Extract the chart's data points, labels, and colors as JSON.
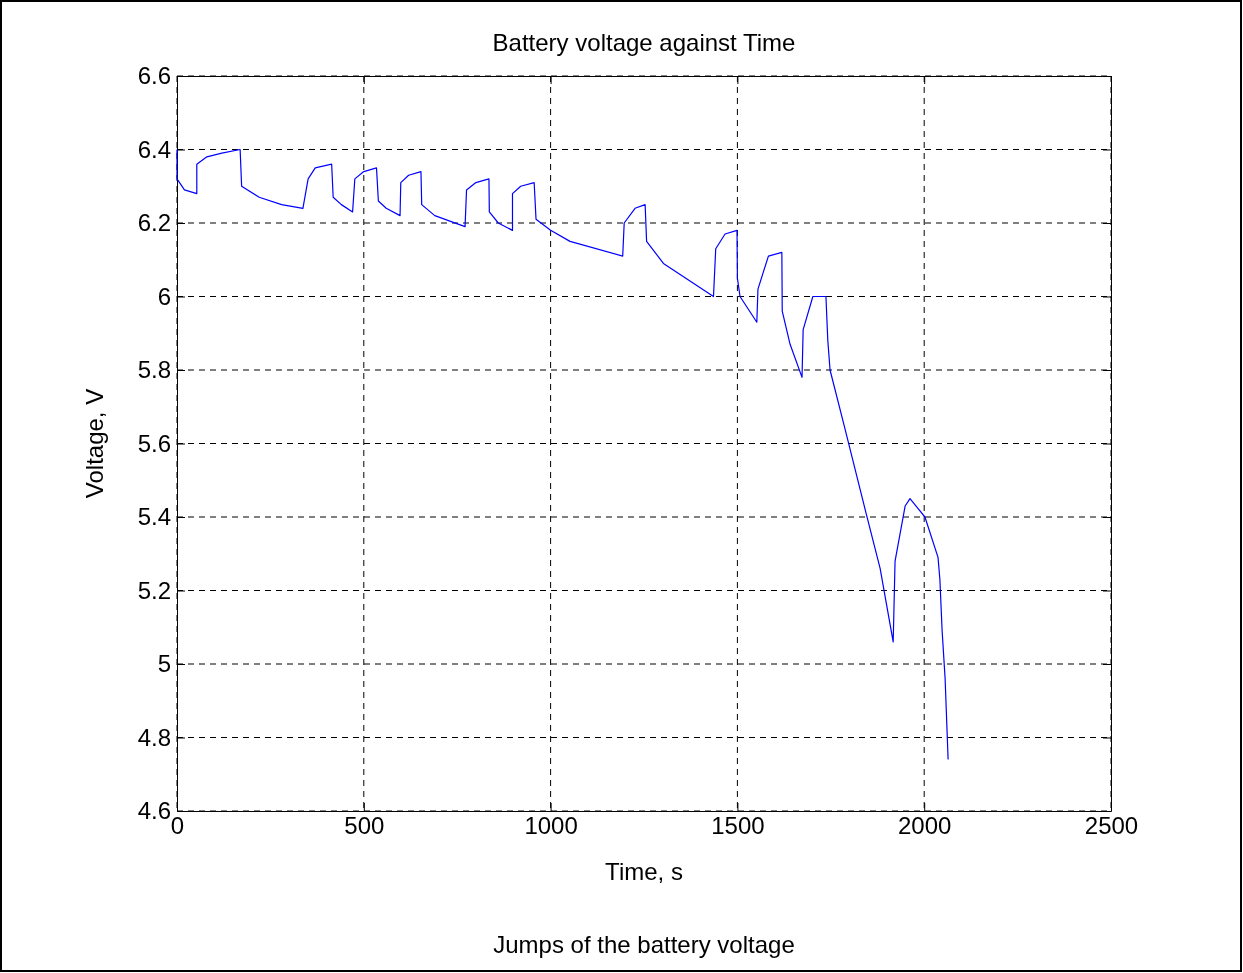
{
  "chart_data": {
    "type": "line",
    "title": "Battery voltage against Time",
    "xlabel": "Time, s",
    "ylabel": "Voltage, V",
    "annotations": [
      "Jumps of the battery voltage"
    ],
    "xlim": [
      0,
      2500
    ],
    "xticks": [
      0,
      500,
      1000,
      1500,
      2000,
      2500
    ],
    "ylim": [
      4.6,
      6.6
    ],
    "yticks": [
      {
        "value": 4.6,
        "label": "4.6"
      },
      {
        "value": 4.8,
        "label": "4.8"
      },
      5,
      {
        "value": 5.2,
        "label": "5.2"
      },
      {
        "value": 5.4,
        "label": "5.4"
      },
      {
        "value": 5.6,
        "label": "5.6"
      },
      {
        "value": 5.8,
        "label": "5.8"
      },
      6,
      {
        "value": 6.2,
        "label": "6.2"
      },
      {
        "value": 6.4,
        "label": "6.4"
      },
      {
        "value": 6.6,
        "label": "6.6"
      }
    ],
    "grid": true,
    "marker": "none",
    "line_style": "solid",
    "series": [
      {
        "color": "#0000ff",
        "x": [
          0,
          0,
          20,
          53,
          53,
          80,
          120,
          169,
          173,
          220,
          280,
          337,
          351,
          370,
          414,
          418,
          440,
          470,
          476,
          500,
          534,
          539,
          560,
          597,
          599,
          620,
          653,
          655,
          690,
          771,
          775,
          800,
          835,
          836,
          860,
          898,
          898,
          920,
          956,
          961,
          1000,
          1052,
          1193,
          1197,
          1226,
          1253,
          1257,
          1302,
          1436,
          1442,
          1467,
          1499,
          1500,
          1507,
          1552,
          1555,
          1583,
          1619,
          1620,
          1641,
          1673,
          1676,
          1702,
          1737,
          1742,
          1748,
          1788,
          1842,
          1882,
          1917,
          1922,
          1949,
          1962,
          2002,
          2037,
          2042,
          2048,
          2056,
          2064
        ],
        "values": [
          6.4,
          6.32,
          6.29,
          6.28,
          6.36,
          6.38,
          6.39,
          6.4,
          6.3,
          6.27,
          6.25,
          6.24,
          6.32,
          6.35,
          6.36,
          6.27,
          6.25,
          6.23,
          6.32,
          6.34,
          6.35,
          6.26,
          6.24,
          6.22,
          6.31,
          6.33,
          6.34,
          6.25,
          6.22,
          6.19,
          6.29,
          6.31,
          6.32,
          6.23,
          6.2,
          6.18,
          6.28,
          6.3,
          6.31,
          6.21,
          6.18,
          6.15,
          6.11,
          6.2,
          6.24,
          6.25,
          6.15,
          6.09,
          6.0,
          6.13,
          6.17,
          6.18,
          6.05,
          6.0,
          5.93,
          6.02,
          6.11,
          6.12,
          5.96,
          5.87,
          5.78,
          5.91,
          6.0,
          6.0,
          5.88,
          5.8,
          5.64,
          5.42,
          5.26,
          5.06,
          5.28,
          5.43,
          5.45,
          5.4,
          5.29,
          5.23,
          5.09,
          4.96,
          4.74
        ]
      }
    ]
  }
}
